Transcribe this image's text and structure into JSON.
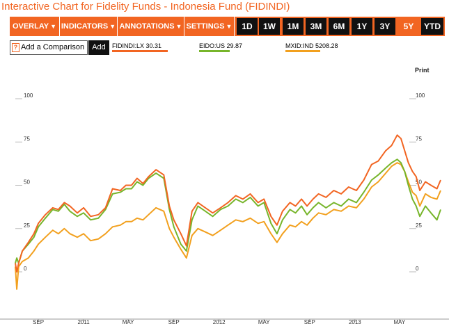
{
  "title": "Interactive Chart for Fidelity Funds - Indonesia Fund (FIDINDI)",
  "toolbar": {
    "menus": [
      "OVERLAY",
      "INDICATORS",
      "ANNOTATIONS",
      "SETTINGS"
    ],
    "ranges": [
      "1D",
      "1W",
      "1M",
      "3M",
      "6M",
      "1Y",
      "3Y",
      "5Y",
      "YTD"
    ],
    "active_range": "5Y"
  },
  "compare": {
    "label": "Add a Comparison",
    "help_icon": "?",
    "add_label": "Add"
  },
  "print_label": "Print",
  "colors": {
    "accent": "#f26522",
    "fidindi": "#f26522",
    "eido": "#77b52b",
    "mxid": "#f2a01e"
  },
  "chart_data": {
    "type": "line",
    "title": "",
    "xlabel": "",
    "ylabel": "",
    "ylim": [
      -10,
      110
    ],
    "yticks": [
      0,
      25,
      50,
      75,
      100
    ],
    "grid": false,
    "legend_placement": "top",
    "x_domain": [
      "2010-07-01",
      "2013-08-20"
    ],
    "x_ticks": [
      {
        "date": "2010-09-01",
        "label": "SEP"
      },
      {
        "date": "2011-01-01",
        "label": "2011"
      },
      {
        "date": "2011-05-01",
        "label": "MAY"
      },
      {
        "date": "2011-09-01",
        "label": "SEP"
      },
      {
        "date": "2012-01-01",
        "label": "2012"
      },
      {
        "date": "2012-05-01",
        "label": "MAY"
      },
      {
        "date": "2012-09-01",
        "label": "SEP"
      },
      {
        "date": "2013-01-01",
        "label": "2013"
      },
      {
        "date": "2013-05-01",
        "label": "MAY"
      }
    ],
    "series": [
      {
        "name": "FIDINDI:LX",
        "last_value": "30.31",
        "color": "#f26522",
        "points": [
          [
            "2010-07-01",
            5
          ],
          [
            "2010-07-05",
            0
          ],
          [
            "2010-07-10",
            5
          ],
          [
            "2010-07-20",
            12
          ],
          [
            "2010-08-05",
            17
          ],
          [
            "2010-08-20",
            22
          ],
          [
            "2010-09-01",
            28
          ],
          [
            "2010-09-20",
            33
          ],
          [
            "2010-10-10",
            37
          ],
          [
            "2010-10-25",
            36
          ],
          [
            "2010-11-10",
            40
          ],
          [
            "2010-11-25",
            38
          ],
          [
            "2010-12-15",
            34
          ],
          [
            "2011-01-01",
            37
          ],
          [
            "2011-01-20",
            32
          ],
          [
            "2011-02-10",
            33
          ],
          [
            "2011-03-01",
            37
          ],
          [
            "2011-03-20",
            48
          ],
          [
            "2011-04-10",
            47
          ],
          [
            "2011-04-25",
            50
          ],
          [
            "2011-05-10",
            50
          ],
          [
            "2011-05-25",
            54
          ],
          [
            "2011-06-10",
            51
          ],
          [
            "2011-06-25",
            55
          ],
          [
            "2011-07-15",
            59
          ],
          [
            "2011-08-05",
            56
          ],
          [
            "2011-08-20",
            38
          ],
          [
            "2011-09-01",
            30
          ],
          [
            "2011-09-20",
            22
          ],
          [
            "2011-10-05",
            15
          ],
          [
            "2011-10-20",
            35
          ],
          [
            "2011-11-05",
            40
          ],
          [
            "2011-11-25",
            37
          ],
          [
            "2011-12-15",
            34
          ],
          [
            "2012-01-05",
            37
          ],
          [
            "2012-01-25",
            40
          ],
          [
            "2012-02-15",
            44
          ],
          [
            "2012-03-05",
            42
          ],
          [
            "2012-03-25",
            45
          ],
          [
            "2012-04-15",
            40
          ],
          [
            "2012-05-01",
            42
          ],
          [
            "2012-05-20",
            32
          ],
          [
            "2012-06-05",
            27
          ],
          [
            "2012-06-20",
            35
          ],
          [
            "2012-07-10",
            40
          ],
          [
            "2012-07-25",
            38
          ],
          [
            "2012-08-10",
            42
          ],
          [
            "2012-08-25",
            38
          ],
          [
            "2012-09-10",
            42
          ],
          [
            "2012-09-25",
            45
          ],
          [
            "2012-10-15",
            43
          ],
          [
            "2012-11-05",
            47
          ],
          [
            "2012-11-25",
            45
          ],
          [
            "2012-12-15",
            49
          ],
          [
            "2013-01-05",
            47
          ],
          [
            "2013-01-25",
            53
          ],
          [
            "2013-02-15",
            62
          ],
          [
            "2013-03-05",
            64
          ],
          [
            "2013-03-25",
            70
          ],
          [
            "2013-04-10",
            73
          ],
          [
            "2013-04-25",
            79
          ],
          [
            "2013-05-05",
            77
          ],
          [
            "2013-05-15",
            70
          ],
          [
            "2013-05-25",
            63
          ],
          [
            "2013-06-05",
            58
          ],
          [
            "2013-06-15",
            55
          ],
          [
            "2013-06-25",
            47
          ],
          [
            "2013-07-10",
            52
          ],
          [
            "2013-07-25",
            50
          ],
          [
            "2013-08-10",
            48
          ],
          [
            "2013-08-20",
            53
          ]
        ]
      },
      {
        "name": "EIDO:US",
        "last_value": "29.87",
        "color": "#77b52b",
        "points": [
          [
            "2010-07-01",
            5
          ],
          [
            "2010-07-05",
            8
          ],
          [
            "2010-07-10",
            5
          ],
          [
            "2010-07-20",
            12
          ],
          [
            "2010-08-05",
            16
          ],
          [
            "2010-08-20",
            20
          ],
          [
            "2010-09-01",
            26
          ],
          [
            "2010-09-20",
            31
          ],
          [
            "2010-10-10",
            36
          ],
          [
            "2010-10-25",
            35
          ],
          [
            "2010-11-10",
            39
          ],
          [
            "2010-11-25",
            35
          ],
          [
            "2010-12-15",
            32
          ],
          [
            "2011-01-01",
            34
          ],
          [
            "2011-01-20",
            30
          ],
          [
            "2011-02-10",
            31
          ],
          [
            "2011-03-01",
            36
          ],
          [
            "2011-03-20",
            45
          ],
          [
            "2011-04-10",
            46
          ],
          [
            "2011-04-25",
            48
          ],
          [
            "2011-05-10",
            48
          ],
          [
            "2011-05-25",
            52
          ],
          [
            "2011-06-10",
            50
          ],
          [
            "2011-06-25",
            54
          ],
          [
            "2011-07-15",
            57
          ],
          [
            "2011-08-05",
            54
          ],
          [
            "2011-08-20",
            36
          ],
          [
            "2011-09-01",
            26
          ],
          [
            "2011-09-20",
            16
          ],
          [
            "2011-10-05",
            12
          ],
          [
            "2011-10-20",
            30
          ],
          [
            "2011-11-05",
            38
          ],
          [
            "2011-11-25",
            35
          ],
          [
            "2011-12-15",
            32
          ],
          [
            "2012-01-05",
            36
          ],
          [
            "2012-01-25",
            38
          ],
          [
            "2012-02-15",
            42
          ],
          [
            "2012-03-05",
            40
          ],
          [
            "2012-03-25",
            43
          ],
          [
            "2012-04-15",
            38
          ],
          [
            "2012-05-01",
            40
          ],
          [
            "2012-05-20",
            28
          ],
          [
            "2012-06-05",
            22
          ],
          [
            "2012-06-20",
            30
          ],
          [
            "2012-07-10",
            36
          ],
          [
            "2012-07-25",
            34
          ],
          [
            "2012-08-10",
            38
          ],
          [
            "2012-08-25",
            33
          ],
          [
            "2012-09-10",
            37
          ],
          [
            "2012-09-25",
            40
          ],
          [
            "2012-10-15",
            37
          ],
          [
            "2012-11-05",
            40
          ],
          [
            "2012-11-25",
            38
          ],
          [
            "2012-12-15",
            42
          ],
          [
            "2013-01-05",
            40
          ],
          [
            "2013-01-25",
            46
          ],
          [
            "2013-02-15",
            53
          ],
          [
            "2013-03-05",
            56
          ],
          [
            "2013-03-25",
            60
          ],
          [
            "2013-04-10",
            63
          ],
          [
            "2013-04-25",
            65
          ],
          [
            "2013-05-05",
            63
          ],
          [
            "2013-05-15",
            58
          ],
          [
            "2013-05-25",
            50
          ],
          [
            "2013-06-05",
            42
          ],
          [
            "2013-06-15",
            38
          ],
          [
            "2013-06-25",
            32
          ],
          [
            "2013-07-10",
            38
          ],
          [
            "2013-07-25",
            34
          ],
          [
            "2013-08-10",
            30
          ],
          [
            "2013-08-20",
            36
          ]
        ]
      },
      {
        "name": "MXID:IND",
        "last_value": "5208.28",
        "color": "#f2a01e",
        "points": [
          [
            "2010-07-01",
            3
          ],
          [
            "2010-07-05",
            -10
          ],
          [
            "2010-07-10",
            3
          ],
          [
            "2010-07-20",
            6
          ],
          [
            "2010-08-05",
            8
          ],
          [
            "2010-08-20",
            12
          ],
          [
            "2010-09-01",
            16
          ],
          [
            "2010-09-20",
            20
          ],
          [
            "2010-10-10",
            24
          ],
          [
            "2010-10-25",
            22
          ],
          [
            "2010-11-10",
            25
          ],
          [
            "2010-11-25",
            22
          ],
          [
            "2010-12-15",
            20
          ],
          [
            "2011-01-01",
            22
          ],
          [
            "2011-01-20",
            18
          ],
          [
            "2011-02-10",
            19
          ],
          [
            "2011-03-01",
            22
          ],
          [
            "2011-03-20",
            26
          ],
          [
            "2011-04-10",
            27
          ],
          [
            "2011-04-25",
            29
          ],
          [
            "2011-05-10",
            29
          ],
          [
            "2011-05-25",
            31
          ],
          [
            "2011-06-10",
            30
          ],
          [
            "2011-06-25",
            33
          ],
          [
            "2011-07-15",
            37
          ],
          [
            "2011-08-05",
            35
          ],
          [
            "2011-08-20",
            25
          ],
          [
            "2011-09-01",
            20
          ],
          [
            "2011-09-20",
            13
          ],
          [
            "2011-10-05",
            8
          ],
          [
            "2011-10-20",
            21
          ],
          [
            "2011-11-05",
            25
          ],
          [
            "2011-11-25",
            23
          ],
          [
            "2011-12-15",
            21
          ],
          [
            "2012-01-05",
            24
          ],
          [
            "2012-01-25",
            27
          ],
          [
            "2012-02-15",
            30
          ],
          [
            "2012-03-05",
            29
          ],
          [
            "2012-03-25",
            31
          ],
          [
            "2012-04-15",
            28
          ],
          [
            "2012-05-01",
            29
          ],
          [
            "2012-05-20",
            22
          ],
          [
            "2012-06-05",
            17
          ],
          [
            "2012-06-20",
            22
          ],
          [
            "2012-07-10",
            27
          ],
          [
            "2012-07-25",
            26
          ],
          [
            "2012-08-10",
            29
          ],
          [
            "2012-08-25",
            27
          ],
          [
            "2012-09-10",
            31
          ],
          [
            "2012-09-25",
            34
          ],
          [
            "2012-10-15",
            33
          ],
          [
            "2012-11-05",
            36
          ],
          [
            "2012-11-25",
            35
          ],
          [
            "2012-12-15",
            38
          ],
          [
            "2013-01-05",
            37
          ],
          [
            "2013-01-25",
            42
          ],
          [
            "2013-02-15",
            49
          ],
          [
            "2013-03-05",
            52
          ],
          [
            "2013-03-25",
            57
          ],
          [
            "2013-04-10",
            61
          ],
          [
            "2013-04-25",
            63
          ],
          [
            "2013-05-05",
            62
          ],
          [
            "2013-05-15",
            58
          ],
          [
            "2013-05-25",
            52
          ],
          [
            "2013-06-05",
            46
          ],
          [
            "2013-06-15",
            44
          ],
          [
            "2013-06-25",
            38
          ],
          [
            "2013-07-10",
            45
          ],
          [
            "2013-07-25",
            43
          ],
          [
            "2013-08-10",
            42
          ],
          [
            "2013-08-20",
            47
          ]
        ]
      }
    ]
  }
}
